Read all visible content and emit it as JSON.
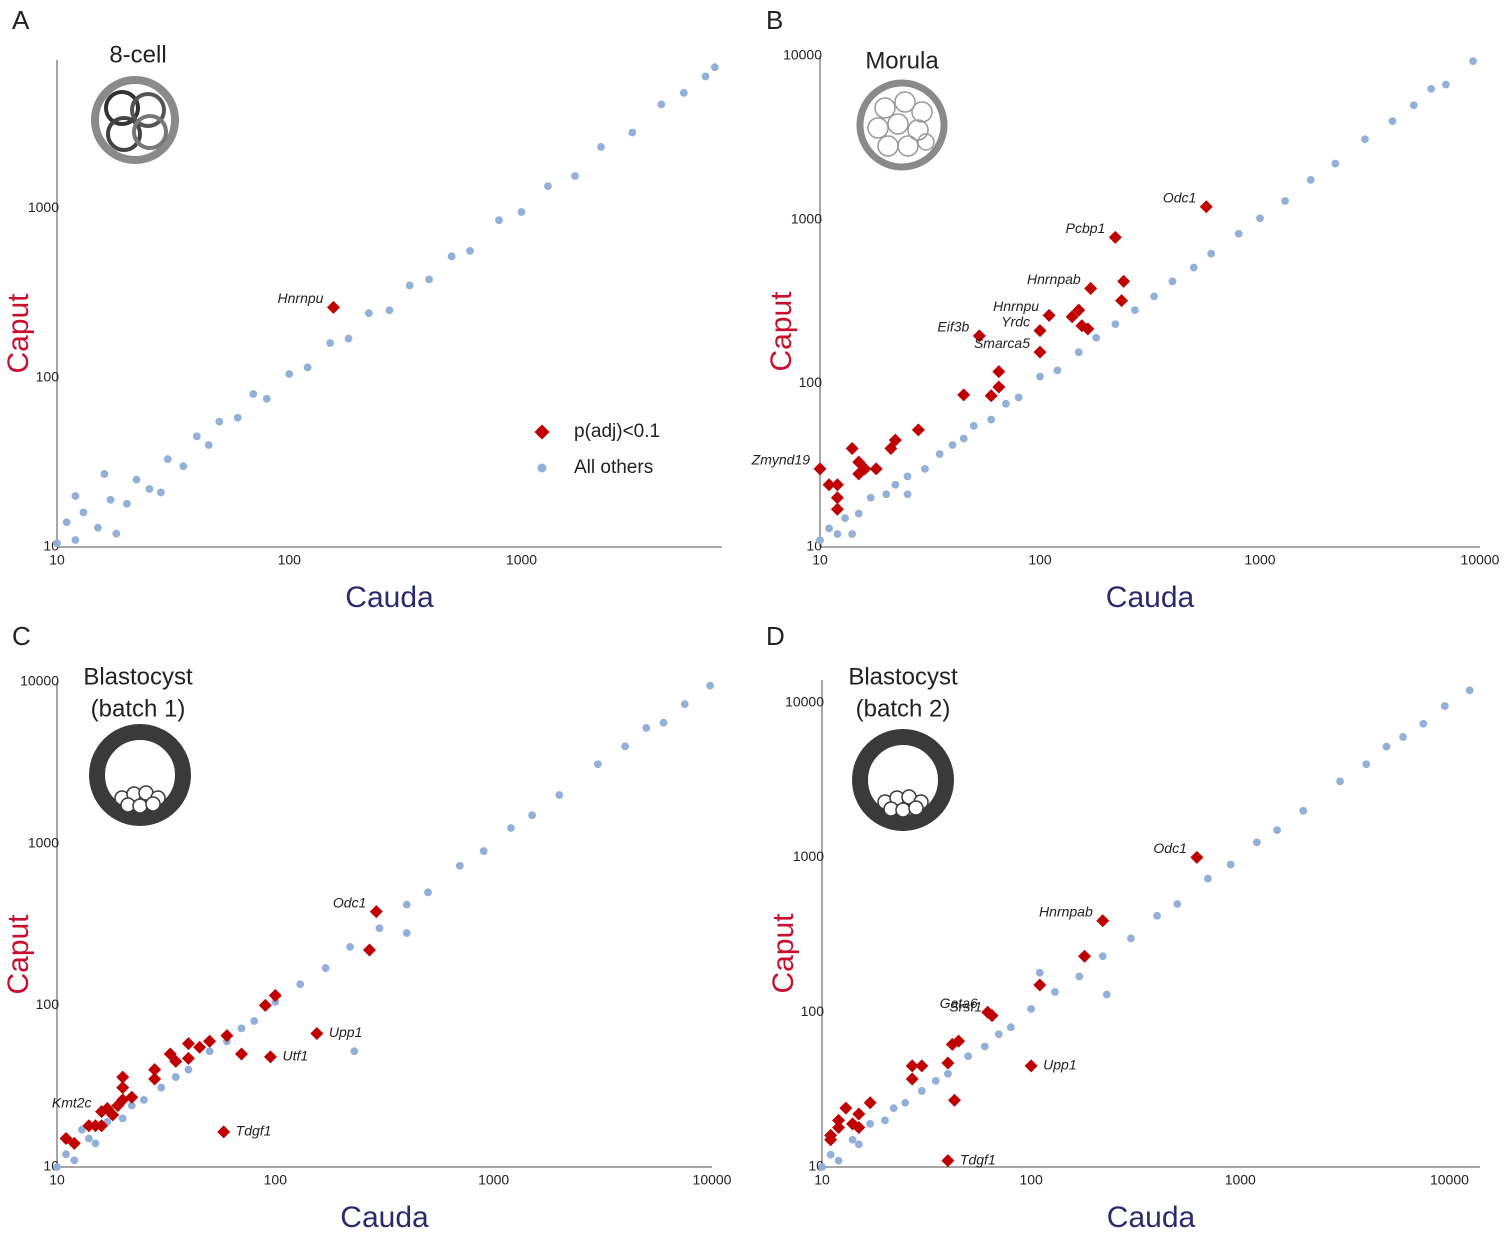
{
  "chart_data": [
    {
      "type": "scatter",
      "panel": "A",
      "title": [
        "8-cell"
      ],
      "xlabel": "Cauda",
      "ylabel": "Caput",
      "xlabel_color": "#2b2a6e",
      "ylabel_color": "#c8102e",
      "xscale": "log",
      "yscale": "log",
      "xlim": [
        10,
        7300
      ],
      "ylim": [
        10,
        7500
      ],
      "xticks": [
        10,
        100,
        1000
      ],
      "yticks": [
        10,
        100,
        1000
      ],
      "legend": "lower right",
      "series": [
        {
          "name": "p(adj)<0.1",
          "color": "#c00000",
          "marker": "diamond",
          "x": [
            155
          ],
          "values": [
            260
          ],
          "labels": [
            "Hnrnpu"
          ]
        },
        {
          "name": "All others",
          "color": "#92b0d8",
          "marker": "circle",
          "x": [
            10,
            11,
            12,
            13,
            15,
            17,
            20,
            22,
            25,
            30,
            35,
            40,
            45,
            50,
            60,
            70,
            80,
            100,
            120,
            150,
            180,
            220,
            270,
            330,
            400,
            500,
            600,
            800,
            1000,
            1300,
            1700,
            2200,
            3000,
            4000,
            5000,
            6200,
            6800,
            12,
            18,
            28,
            16
          ],
          "values": [
            10.5,
            14,
            11,
            16,
            13,
            19,
            18,
            25,
            22,
            33,
            30,
            45,
            40,
            55,
            58,
            80,
            75,
            105,
            115,
            160,
            170,
            240,
            250,
            350,
            380,
            520,
            560,
            850,
            950,
            1350,
            1550,
            2300,
            2800,
            4100,
            4800,
            6000,
            6800,
            20,
            12,
            21,
            27
          ]
        }
      ]
    },
    {
      "type": "scatter",
      "panel": "B",
      "title": [
        "Morula"
      ],
      "xlabel": "Cauda",
      "ylabel": "Caput",
      "xlabel_color": "#2b2a6e",
      "ylabel_color": "#c8102e",
      "xscale": "log",
      "yscale": "log",
      "xlim": [
        10,
        10000
      ],
      "ylim": [
        10,
        10000
      ],
      "xticks": [
        10,
        100,
        1000,
        10000
      ],
      "yticks": [
        10,
        100,
        1000,
        10000
      ],
      "series": [
        {
          "color": "#c00000",
          "marker": "diamond",
          "x": [
            570,
            220,
            170,
            240,
            235,
            110,
            150,
            140,
            155,
            165,
            100,
            53,
            100,
            65,
            65,
            45,
            60,
            28,
            22,
            21,
            14,
            15,
            16,
            15,
            18,
            10,
            11,
            12,
            12,
            12
          ],
          "values": [
            1200,
            780,
            380,
            420,
            320,
            260,
            280,
            255,
            225,
            215,
            210,
            195,
            155,
            118,
            95,
            85,
            84,
            52,
            45,
            40,
            40,
            33,
            30,
            28,
            30,
            30,
            24,
            24,
            20,
            17
          ],
          "labels": [
            "Odc1",
            "Pcbp1",
            "Hnrnpab",
            null,
            null,
            "Hnrnpu",
            null,
            null,
            null,
            null,
            "Yrdc",
            "Eif3b",
            "Smarca5",
            null,
            null,
            null,
            null,
            null,
            null,
            null,
            null,
            null,
            null,
            null,
            null,
            "Zmynd19",
            null,
            null,
            null,
            null
          ]
        },
        {
          "color": "#92b0d8",
          "marker": "circle",
          "x": [
            10,
            11,
            12,
            13,
            15,
            17,
            20,
            22,
            25,
            30,
            35,
            40,
            45,
            50,
            60,
            70,
            80,
            100,
            120,
            150,
            180,
            220,
            270,
            330,
            400,
            500,
            600,
            800,
            1000,
            1300,
            1700,
            2200,
            3000,
            4000,
            5000,
            6000,
            7000,
            9300,
            14,
            25
          ],
          "values": [
            11,
            13,
            12,
            15,
            16,
            20,
            21,
            24,
            27,
            30,
            37,
            42,
            46,
            55,
            60,
            75,
            82,
            110,
            120,
            155,
            190,
            230,
            280,
            340,
            420,
            510,
            620,
            820,
            1020,
            1300,
            1750,
            2200,
            3100,
            4000,
            5000,
            6300,
            6700,
            9300,
            12,
            21
          ]
        }
      ]
    },
    {
      "type": "scatter",
      "panel": "C",
      "title": [
        "Blastocyst",
        "(batch 1)"
      ],
      "xlabel": "Cauda",
      "ylabel": "Caput",
      "xlabel_color": "#2b2a6e",
      "ylabel_color": "#c8102e",
      "xscale": "log",
      "yscale": "log",
      "xlim": [
        10,
        10000
      ],
      "ylim": [
        10,
        10000
      ],
      "xticks": [
        10,
        100,
        1000,
        10000
      ],
      "yticks": [
        10,
        100,
        1000,
        10000
      ],
      "series": [
        {
          "color": "#c00000",
          "marker": "diamond",
          "x": [
            290,
            270,
            155,
            95,
            58,
            16,
            100,
            90,
            60,
            70,
            45,
            40,
            40,
            35,
            33,
            28,
            28,
            20,
            20,
            22,
            20,
            19,
            18,
            15,
            14,
            16,
            11,
            12,
            17,
            50
          ],
          "values": [
            380,
            220,
            67,
            48,
            16.5,
            22,
            115,
            100,
            65,
            50,
            55,
            58,
            47,
            45,
            50,
            40,
            35,
            36,
            31,
            27,
            26,
            24,
            21,
            18,
            18,
            18,
            15,
            14,
            23,
            60
          ],
          "labels": [
            "Odc1",
            null,
            "Upp1",
            "Utf1",
            "Tdgf1",
            "Kmt2c",
            null,
            null,
            null,
            null,
            null,
            null,
            null,
            null,
            null,
            null,
            null,
            null,
            null,
            null,
            null,
            null,
            null,
            null,
            null,
            null,
            null,
            null,
            null,
            null
          ]
        },
        {
          "color": "#92b0d8",
          "marker": "circle",
          "x": [
            10,
            11,
            12,
            14,
            15,
            17,
            20,
            22,
            25,
            30,
            35,
            40,
            50,
            60,
            70,
            80,
            100,
            130,
            170,
            220,
            300,
            400,
            500,
            700,
            900,
            1200,
            1500,
            2000,
            3000,
            4000,
            5000,
            6000,
            7500,
            9800,
            230,
            13,
            400
          ],
          "values": [
            10,
            12,
            11,
            15,
            14,
            19,
            20,
            24,
            26,
            31,
            36,
            40,
            52,
            60,
            72,
            80,
            105,
            135,
            170,
            230,
            300,
            420,
            500,
            730,
            900,
            1250,
            1500,
            2000,
            3100,
            4000,
            5200,
            5600,
            7300,
            9500,
            52,
            17,
            280
          ]
        }
      ]
    },
    {
      "type": "scatter",
      "panel": "D",
      "title": [
        "Blastocyst",
        "(batch 2)"
      ],
      "xlabel": "Cauda",
      "ylabel": "Caput",
      "xlabel_color": "#2b2a6e",
      "ylabel_color": "#c8102e",
      "xscale": "log",
      "yscale": "log",
      "xlim": [
        10,
        14000
      ],
      "ylim": [
        10,
        14000
      ],
      "xticks": [
        10,
        100,
        1000,
        10000
      ],
      "yticks": [
        10,
        100,
        1000,
        10000
      ],
      "series": [
        {
          "color": "#c00000",
          "marker": "diamond",
          "x": [
            620,
            220,
            180,
            110,
            62,
            65,
            45,
            42,
            40,
            30,
            27,
            27,
            43,
            100,
            40,
            17,
            15,
            13,
            14,
            15,
            12,
            11,
            11,
            12
          ],
          "values": [
            1000,
            390,
            230,
            150,
            100,
            95,
            65,
            62,
            47,
            45,
            45,
            37,
            27,
            45,
            11,
            26,
            22,
            24,
            19,
            18,
            20,
            16,
            15,
            18
          ],
          "labels": [
            "Odc1",
            "Hnrnpab",
            null,
            null,
            "Gata6",
            "Srsf1",
            null,
            null,
            null,
            null,
            null,
            null,
            null,
            "Upp1",
            "Tdgf1",
            null,
            null,
            null,
            null,
            null,
            null,
            null,
            null,
            null
          ]
        },
        {
          "color": "#92b0d8",
          "marker": "circle",
          "x": [
            10,
            11,
            12,
            14,
            15,
            17,
            20,
            22,
            25,
            30,
            35,
            40,
            50,
            60,
            70,
            80,
            100,
            130,
            170,
            220,
            300,
            400,
            500,
            700,
            900,
            1200,
            1500,
            2000,
            3000,
            4000,
            5000,
            6000,
            7500,
            9500,
            12500,
            110,
            230
          ],
          "values": [
            10,
            12,
            11,
            15,
            14,
            19,
            20,
            24,
            26,
            31,
            36,
            40,
            52,
            60,
            72,
            80,
            105,
            135,
            170,
            230,
            300,
            420,
            500,
            730,
            900,
            1250,
            1500,
            2000,
            3100,
            4000,
            5200,
            6000,
            7300,
            9500,
            12000,
            180,
            130
          ]
        }
      ]
    }
  ]
}
